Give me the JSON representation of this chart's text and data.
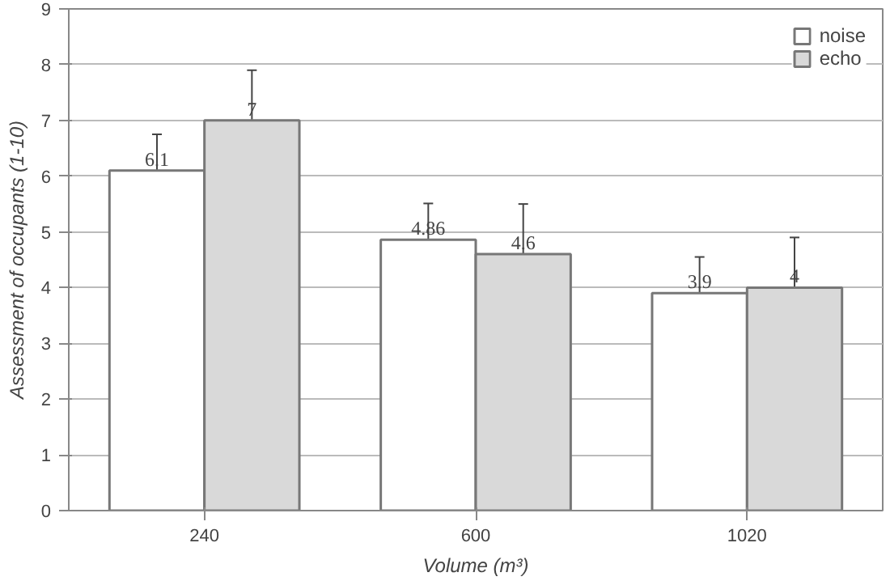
{
  "chart_data": {
    "type": "bar",
    "xlabel": "Volume (m³)",
    "ylabel": "Assessment of occupants (1-10)",
    "categories": [
      "240",
      "600",
      "1020"
    ],
    "series": [
      {
        "name": "noise",
        "color": "#ffffff",
        "values": [
          6.1,
          4.86,
          3.9
        ],
        "errors": [
          0.65,
          0.65,
          0.65
        ]
      },
      {
        "name": "echo",
        "color": "#d9d9d9",
        "values": [
          7,
          4.6,
          4
        ],
        "errors": [
          0.9,
          0.9,
          0.9
        ]
      }
    ],
    "ylim": [
      0,
      9
    ],
    "yticks": [
      0,
      1,
      2,
      3,
      4,
      5,
      6,
      7,
      8,
      9
    ],
    "grid": "y",
    "legend": "top right",
    "data_labels": true
  }
}
